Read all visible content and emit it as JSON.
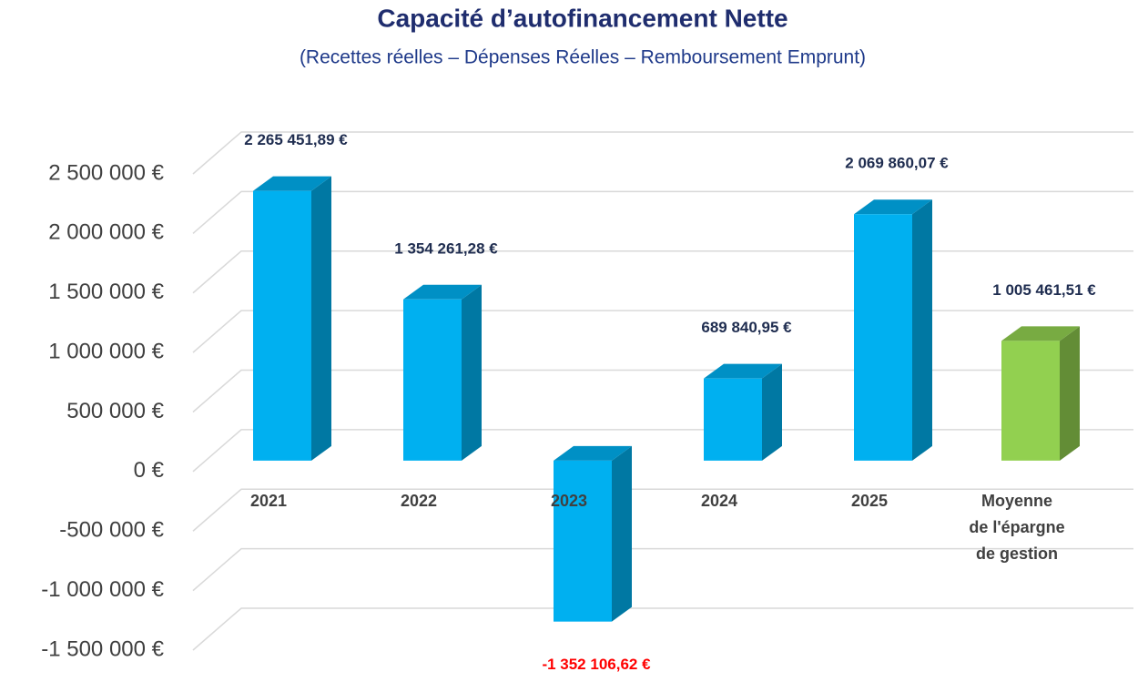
{
  "chart_data": {
    "type": "bar3d",
    "title": "Capacité d’autofinancement Nette",
    "subtitle": "(Recettes réelles – Dépenses Réelles – Remboursement Emprunt)",
    "categories": [
      "2021",
      "2022",
      "2023",
      "2024",
      "2025",
      "Moyenne\nde l'épargne\nde gestion"
    ],
    "values": [
      2265451.89,
      1354261.28,
      -1352106.62,
      689840.95,
      2069860.07,
      1005461.51
    ],
    "value_labels": [
      "2 265 451,89 €",
      "1 354 261,28 €",
      "-1 352 106,62 €",
      "689 840,95 €",
      "2 069 860,07 €",
      "1 005 461,51 €"
    ],
    "colors": [
      "#00b0f0",
      "#00b0f0",
      "#00b0f0",
      "#00b0f0",
      "#00b0f0",
      "#92d050"
    ],
    "label_color": "#1f2d50",
    "negative_label_color": "#ff0000",
    "ylim": [
      -1500000,
      2500000
    ],
    "yticks": [
      {
        "value": -1500000,
        "label": "-1 500 000 €"
      },
      {
        "value": -1000000,
        "label": "-1 000 000 €"
      },
      {
        "value": -500000,
        "label": "-500 000 €"
      },
      {
        "value": 0,
        "label": "0 €"
      },
      {
        "value": 500000,
        "label": "500 000 €"
      },
      {
        "value": 1000000,
        "label": "1 000 000 €"
      },
      {
        "value": 1500000,
        "label": "1 500 000 €"
      },
      {
        "value": 2000000,
        "label": "2 000 000 €"
      },
      {
        "value": 2500000,
        "label": "2 500 000 €"
      }
    ],
    "grid": true
  }
}
